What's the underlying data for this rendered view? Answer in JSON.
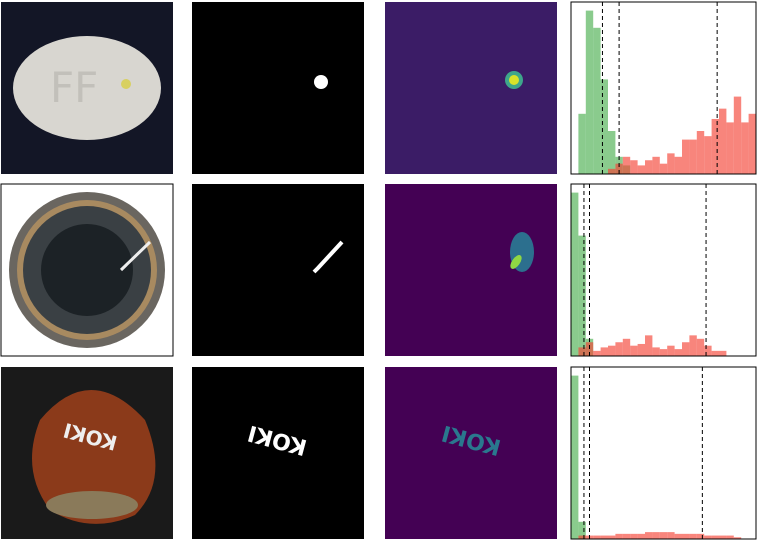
{
  "chart_data": [
    {
      "type": "histogram",
      "xlim": [
        0,
        1
      ],
      "ylim": [
        0,
        1
      ],
      "bins": [
        0,
        0.04,
        0.08,
        0.12,
        0.16,
        0.2,
        0.24,
        0.28,
        0.32,
        0.36,
        0.4,
        0.44,
        0.48,
        0.52,
        0.56,
        0.6,
        0.64,
        0.68,
        0.72,
        0.76,
        0.8,
        0.84,
        0.88,
        0.92,
        0.96,
        1
      ],
      "series": [
        {
          "color": "#4caf50",
          "values": [
            0,
            0.35,
            0.95,
            0.85,
            0.55,
            0.25,
            0.1,
            0.05,
            0,
            0,
            0,
            0,
            0,
            0,
            0,
            0,
            0,
            0,
            0,
            0,
            0,
            0,
            0,
            0,
            0
          ]
        },
        {
          "color": "#f44336",
          "values": [
            0,
            0,
            0,
            0,
            0,
            0.03,
            0.06,
            0.1,
            0.08,
            0.05,
            0.08,
            0.1,
            0.06,
            0.12,
            0.1,
            0.2,
            0.2,
            0.25,
            0.22,
            0.32,
            0.38,
            0.3,
            0.45,
            0.3,
            0.35
          ]
        }
      ],
      "thresholds": [
        0.17,
        0.26,
        0.79
      ]
    },
    {
      "type": "histogram",
      "xlim": [
        0,
        1
      ],
      "ylim": [
        0,
        1
      ],
      "bins": [
        0,
        0.04,
        0.08,
        0.12,
        0.16,
        0.2,
        0.24,
        0.28,
        0.32,
        0.36,
        0.4,
        0.44,
        0.48,
        0.52,
        0.56,
        0.6,
        0.64,
        0.68,
        0.72,
        0.76,
        0.8,
        0.84,
        0.88,
        0.92,
        0.96,
        1
      ],
      "series": [
        {
          "color": "#4caf50",
          "values": [
            0.95,
            0.7,
            0.1,
            0,
            0,
            0,
            0,
            0,
            0,
            0,
            0,
            0,
            0,
            0,
            0,
            0,
            0,
            0,
            0,
            0,
            0,
            0,
            0,
            0,
            0
          ]
        },
        {
          "color": "#f44336",
          "values": [
            0,
            0.05,
            0.08,
            0.03,
            0.05,
            0.06,
            0.08,
            0.1,
            0.06,
            0.07,
            0.12,
            0.05,
            0.04,
            0.06,
            0.04,
            0.08,
            0.12,
            0.1,
            0.06,
            0.03,
            0.03,
            0,
            0,
            0,
            0
          ]
        }
      ],
      "thresholds": [
        0.07,
        0.1,
        0.73
      ]
    },
    {
      "type": "histogram",
      "xlim": [
        0,
        1
      ],
      "ylim": [
        0,
        1
      ],
      "bins": [
        0,
        0.04,
        0.08,
        0.12,
        0.16,
        0.2,
        0.24,
        0.28,
        0.32,
        0.36,
        0.4,
        0.44,
        0.48,
        0.52,
        0.56,
        0.6,
        0.64,
        0.68,
        0.72,
        0.76,
        0.8,
        0.84,
        0.88,
        0.92,
        0.96,
        1
      ],
      "series": [
        {
          "color": "#4caf50",
          "values": [
            0.95,
            0.1,
            0,
            0,
            0,
            0,
            0,
            0,
            0,
            0,
            0,
            0,
            0,
            0,
            0,
            0,
            0,
            0,
            0,
            0,
            0,
            0,
            0,
            0,
            0
          ]
        },
        {
          "color": "#f44336",
          "values": [
            0,
            0.02,
            0.02,
            0.02,
            0.02,
            0.02,
            0.03,
            0.03,
            0.03,
            0.03,
            0.04,
            0.04,
            0.04,
            0.04,
            0.03,
            0.03,
            0.03,
            0.03,
            0.02,
            0.02,
            0.02,
            0.02,
            0.01,
            0,
            0
          ]
        }
      ],
      "thresholds": [
        0.07,
        0.1,
        0.71
      ]
    }
  ]
}
